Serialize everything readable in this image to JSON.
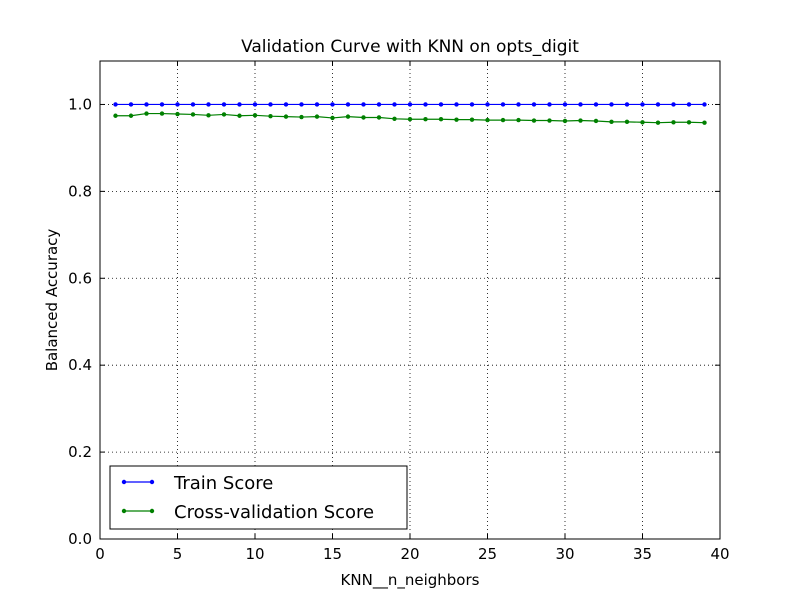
{
  "chart_data": {
    "type": "line",
    "title": "Validation Curve with KNN on opts_digit",
    "xlabel": "KNN__n_neighbors",
    "ylabel": "Balanced Accuracy",
    "xlim": [
      0,
      40
    ],
    "ylim": [
      0.0,
      1.1
    ],
    "xticks": [
      0,
      5,
      10,
      15,
      20,
      25,
      30,
      35,
      40
    ],
    "xtick_labels": [
      "0",
      "5",
      "10",
      "15",
      "20",
      "25",
      "30",
      "35",
      "40"
    ],
    "yticks": [
      0.0,
      0.2,
      0.4,
      0.6,
      0.8,
      1.0
    ],
    "ytick_labels": [
      "0.0",
      "0.2",
      "0.4",
      "0.6",
      "0.8",
      "1.0"
    ],
    "grid": true,
    "legend_position": "lower-left",
    "x": [
      1,
      2,
      3,
      4,
      5,
      6,
      7,
      8,
      9,
      10,
      11,
      12,
      13,
      14,
      15,
      16,
      17,
      18,
      19,
      20,
      21,
      22,
      23,
      24,
      25,
      26,
      27,
      28,
      29,
      30,
      31,
      32,
      33,
      34,
      35,
      36,
      37,
      38,
      39
    ],
    "series": [
      {
        "name": "Train Score",
        "color": "#0000ff",
        "values": [
          1.0,
          1.0,
          1.0,
          1.0,
          1.0,
          1.0,
          1.0,
          1.0,
          1.0,
          1.0,
          1.0,
          1.0,
          1.0,
          1.0,
          1.0,
          1.0,
          1.0,
          1.0,
          1.0,
          1.0,
          1.0,
          1.0,
          1.0,
          1.0,
          1.0,
          1.0,
          1.0,
          1.0,
          1.0,
          1.0,
          1.0,
          1.0,
          1.0,
          1.0,
          1.0,
          1.0,
          1.0,
          1.0,
          1.0
        ]
      },
      {
        "name": "Cross-validation Score",
        "color": "#008000",
        "values": [
          0.974,
          0.974,
          0.979,
          0.979,
          0.978,
          0.977,
          0.975,
          0.977,
          0.974,
          0.975,
          0.973,
          0.972,
          0.971,
          0.972,
          0.969,
          0.972,
          0.97,
          0.97,
          0.967,
          0.966,
          0.966,
          0.966,
          0.965,
          0.965,
          0.964,
          0.964,
          0.964,
          0.963,
          0.963,
          0.962,
          0.963,
          0.962,
          0.96,
          0.96,
          0.959,
          0.958,
          0.959,
          0.959,
          0.958
        ]
      }
    ]
  }
}
